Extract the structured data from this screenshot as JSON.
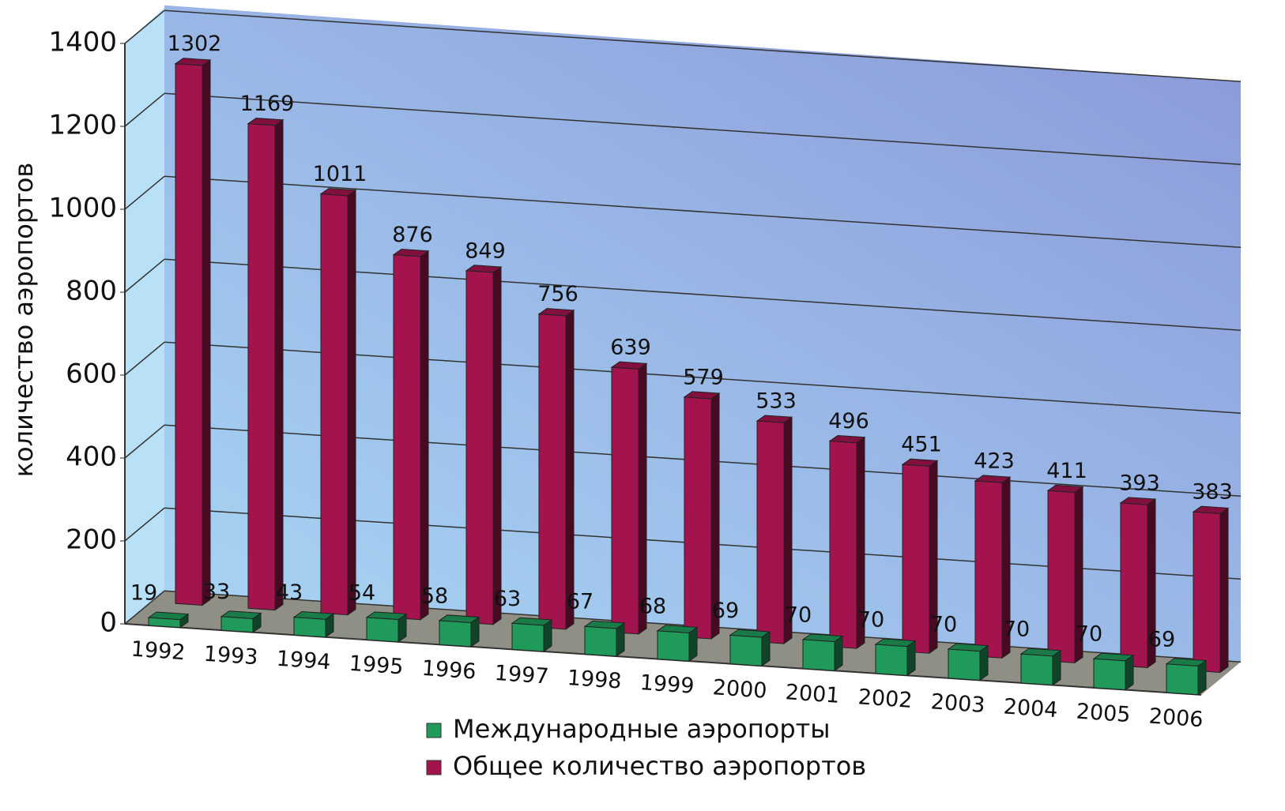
{
  "chart_data": {
    "type": "bar3d",
    "y_label": "количество аэропортов",
    "categories": [
      "1992",
      "1993",
      "1994",
      "1995",
      "1996",
      "1997",
      "1998",
      "1999",
      "2000",
      "2001",
      "2002",
      "2003",
      "2004",
      "2005",
      "2006"
    ],
    "series": [
      {
        "name": "Международные аэропорты",
        "color": "#1f9a5a",
        "values": [
          19,
          33,
          43,
          54,
          58,
          63,
          67,
          68,
          69,
          70,
          70,
          70,
          70,
          70,
          69
        ]
      },
      {
        "name": "Общее количество аэропортов",
        "color": "#a3144f",
        "values": [
          1302,
          1169,
          1011,
          876,
          849,
          756,
          639,
          579,
          533,
          496,
          451,
          423,
          411,
          393,
          383
        ]
      }
    ],
    "ylim": [
      0,
      1400
    ],
    "yticks": [
      0,
      200,
      400,
      600,
      800,
      1000,
      1200,
      1400
    ],
    "grid": true,
    "legend": "bottom"
  }
}
